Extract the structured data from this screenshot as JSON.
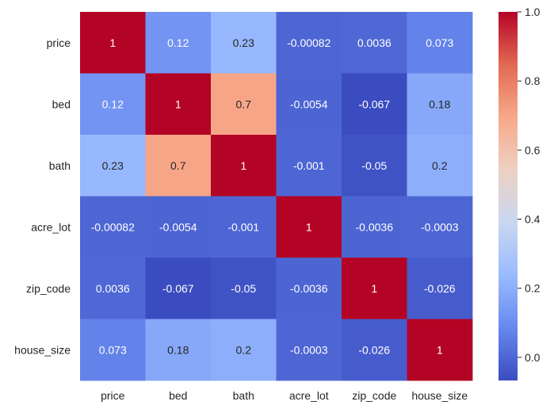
{
  "chart_data": {
    "type": "heatmap",
    "title": "",
    "xlabel": "",
    "ylabel": "",
    "x_categories": [
      "price",
      "bed",
      "bath",
      "acre_lot",
      "zip_code",
      "house_size"
    ],
    "y_categories": [
      "price",
      "bed",
      "bath",
      "acre_lot",
      "zip_code",
      "house_size"
    ],
    "cells": [
      {
        "row": 0,
        "col": 0,
        "value": 1,
        "label": "1"
      },
      {
        "row": 0,
        "col": 1,
        "value": 0.12,
        "label": "0.12"
      },
      {
        "row": 0,
        "col": 2,
        "value": 0.23,
        "label": "0.23"
      },
      {
        "row": 0,
        "col": 3,
        "value": -0.00082,
        "label": "-0.00082"
      },
      {
        "row": 0,
        "col": 4,
        "value": 0.0036,
        "label": "0.0036"
      },
      {
        "row": 0,
        "col": 5,
        "value": 0.073,
        "label": "0.073"
      },
      {
        "row": 1,
        "col": 0,
        "value": 0.12,
        "label": "0.12"
      },
      {
        "row": 1,
        "col": 1,
        "value": 1,
        "label": "1"
      },
      {
        "row": 1,
        "col": 2,
        "value": 0.7,
        "label": "0.7"
      },
      {
        "row": 1,
        "col": 3,
        "value": -0.0054,
        "label": "-0.0054"
      },
      {
        "row": 1,
        "col": 4,
        "value": -0.067,
        "label": "-0.067"
      },
      {
        "row": 1,
        "col": 5,
        "value": 0.18,
        "label": "0.18"
      },
      {
        "row": 2,
        "col": 0,
        "value": 0.23,
        "label": "0.23"
      },
      {
        "row": 2,
        "col": 1,
        "value": 0.7,
        "label": "0.7"
      },
      {
        "row": 2,
        "col": 2,
        "value": 1,
        "label": "1"
      },
      {
        "row": 2,
        "col": 3,
        "value": -0.001,
        "label": "-0.001"
      },
      {
        "row": 2,
        "col": 4,
        "value": -0.05,
        "label": "-0.05"
      },
      {
        "row": 2,
        "col": 5,
        "value": 0.2,
        "label": "0.2"
      },
      {
        "row": 3,
        "col": 0,
        "value": -0.00082,
        "label": "-0.00082"
      },
      {
        "row": 3,
        "col": 1,
        "value": -0.0054,
        "label": "-0.0054"
      },
      {
        "row": 3,
        "col": 2,
        "value": -0.001,
        "label": "-0.001"
      },
      {
        "row": 3,
        "col": 3,
        "value": 1,
        "label": "1"
      },
      {
        "row": 3,
        "col": 4,
        "value": -0.0036,
        "label": "-0.0036"
      },
      {
        "row": 3,
        "col": 5,
        "value": -0.0003,
        "label": "-0.0003"
      },
      {
        "row": 4,
        "col": 0,
        "value": 0.0036,
        "label": "0.0036"
      },
      {
        "row": 4,
        "col": 1,
        "value": -0.067,
        "label": "-0.067"
      },
      {
        "row": 4,
        "col": 2,
        "value": -0.05,
        "label": "-0.05"
      },
      {
        "row": 4,
        "col": 3,
        "value": -0.0036,
        "label": "-0.0036"
      },
      {
        "row": 4,
        "col": 4,
        "value": 1,
        "label": "1"
      },
      {
        "row": 4,
        "col": 5,
        "value": -0.026,
        "label": "-0.026"
      },
      {
        "row": 5,
        "col": 0,
        "value": 0.073,
        "label": "0.073"
      },
      {
        "row": 5,
        "col": 1,
        "value": 0.18,
        "label": "0.18"
      },
      {
        "row": 5,
        "col": 2,
        "value": 0.2,
        "label": "0.2"
      },
      {
        "row": 5,
        "col": 3,
        "value": -0.0003,
        "label": "-0.0003"
      },
      {
        "row": 5,
        "col": 4,
        "value": -0.026,
        "label": "-0.026"
      },
      {
        "row": 5,
        "col": 5,
        "value": 1,
        "label": "1"
      }
    ],
    "colormap": "coolwarm",
    "colormap_stops": [
      "#3b4cc0",
      "#6788ee",
      "#9abbff",
      "#c9d7f0",
      "#edd1c2",
      "#f7a889",
      "#e26952",
      "#b40426"
    ],
    "vmin": -0.067,
    "vmax": 1.0,
    "colorbar": {
      "ticks": [
        0.0,
        0.2,
        0.4,
        0.6,
        0.8,
        1.0
      ],
      "tick_labels": [
        "0.0",
        "0.2",
        "0.4",
        "0.6",
        "0.8",
        "1.0"
      ],
      "position": "right"
    },
    "annotation_colors": {
      "light_text": "#ffffff",
      "dark_text": "#262626"
    },
    "grid": false,
    "legend": "none"
  }
}
